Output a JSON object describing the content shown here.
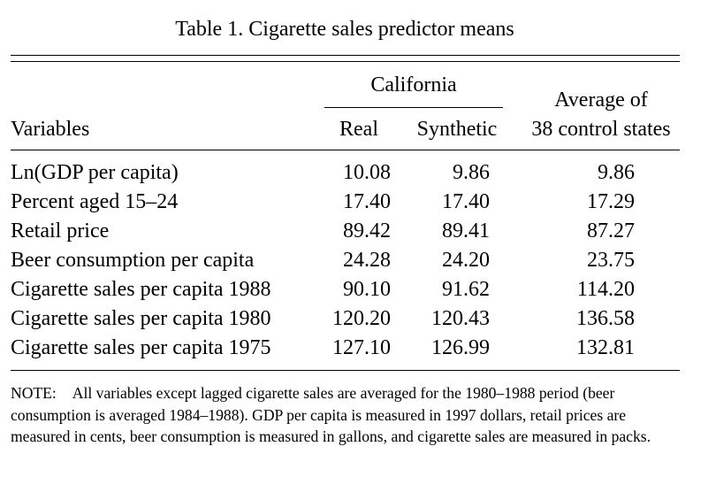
{
  "table": {
    "title": "Table 1.  Cigarette sales predictor means",
    "header": {
      "group_label": "California",
      "variables_label": "Variables",
      "real_label": "Real",
      "synthetic_label": "Synthetic",
      "average_line1": "Average of",
      "average_line2": "38 control states"
    },
    "rows": [
      {
        "variable": "Ln(GDP per capita)",
        "real": "10.08",
        "synthetic": "9.86",
        "average": "9.86"
      },
      {
        "variable": "Percent aged 15–24",
        "real": "17.40",
        "synthetic": "17.40",
        "average": "17.29"
      },
      {
        "variable": "Retail price",
        "real": "89.42",
        "synthetic": "89.41",
        "average": "87.27"
      },
      {
        "variable": "Beer consumption per capita",
        "real": "24.28",
        "synthetic": "24.20",
        "average": "23.75"
      },
      {
        "variable": "Cigarette sales per capita 1988",
        "real": "90.10",
        "synthetic": "91.62",
        "average": "114.20"
      },
      {
        "variable": "Cigarette sales per capita 1980",
        "real": "120.20",
        "synthetic": "120.43",
        "average": "136.58"
      },
      {
        "variable": "Cigarette sales per capita 1975",
        "real": "127.10",
        "synthetic": "126.99",
        "average": "132.81"
      }
    ],
    "note_label": "NOTE:",
    "note_text": "All variables except lagged cigarette sales are averaged for the 1980–1988 period (beer consumption is averaged 1984–1988). GDP per capita is measured in 1997 dollars, retail prices are measured in cents, beer consumption is measured in gallons, and cigarette sales are measured in packs."
  }
}
